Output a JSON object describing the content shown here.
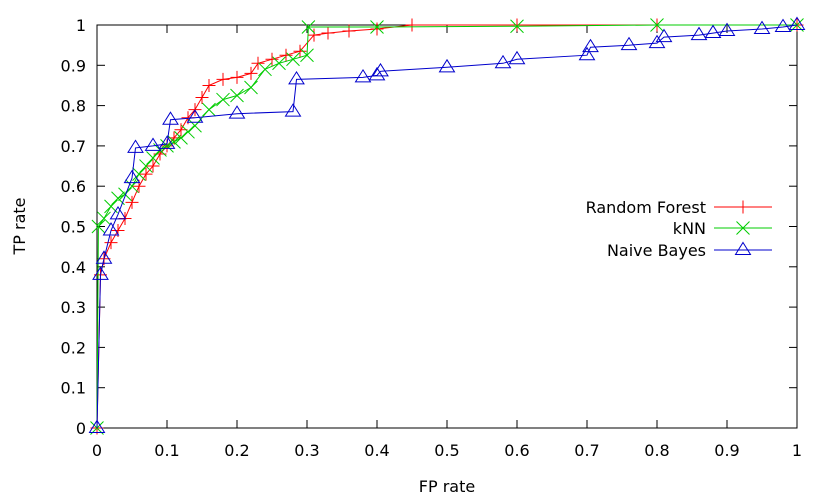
{
  "chart_data": {
    "type": "line",
    "xlabel": "FP rate",
    "ylabel": "TP rate",
    "xlim": [
      0,
      1
    ],
    "ylim": [
      0,
      1
    ],
    "x_ticks": [
      "0",
      "0.1",
      "0.2",
      "0.3",
      "0.4",
      "0.5",
      "0.6",
      "0.7",
      "0.8",
      "0.9",
      "1"
    ],
    "y_ticks": [
      "0",
      "0.1",
      "0.2",
      "0.3",
      "0.4",
      "0.5",
      "0.6",
      "0.7",
      "0.8",
      "0.9",
      "1"
    ],
    "grid": false,
    "legend_position": "right",
    "series": [
      {
        "name": "Random Forest",
        "color": "#ff0000",
        "marker": "plus",
        "points": [
          [
            0,
            0
          ],
          [
            0.005,
            0.38
          ],
          [
            0.01,
            0.42
          ],
          [
            0.02,
            0.46
          ],
          [
            0.03,
            0.49
          ],
          [
            0.04,
            0.52
          ],
          [
            0.05,
            0.56
          ],
          [
            0.06,
            0.6
          ],
          [
            0.07,
            0.63
          ],
          [
            0.08,
            0.65
          ],
          [
            0.09,
            0.68
          ],
          [
            0.1,
            0.7
          ],
          [
            0.11,
            0.72
          ],
          [
            0.12,
            0.74
          ],
          [
            0.13,
            0.77
          ],
          [
            0.14,
            0.79
          ],
          [
            0.15,
            0.82
          ],
          [
            0.16,
            0.85
          ],
          [
            0.18,
            0.865
          ],
          [
            0.2,
            0.87
          ],
          [
            0.22,
            0.88
          ],
          [
            0.23,
            0.905
          ],
          [
            0.25,
            0.915
          ],
          [
            0.27,
            0.925
          ],
          [
            0.29,
            0.935
          ],
          [
            0.31,
            0.975
          ],
          [
            0.33,
            0.98
          ],
          [
            0.36,
            0.985
          ],
          [
            0.4,
            0.99
          ],
          [
            0.45,
            1
          ],
          [
            0.6,
            1
          ],
          [
            0.8,
            1
          ],
          [
            1,
            1
          ]
        ]
      },
      {
        "name": "kNN",
        "color": "#00cc00",
        "marker": "cross",
        "points": [
          [
            0,
            0
          ],
          [
            0.002,
            0.5
          ],
          [
            0.01,
            0.52
          ],
          [
            0.02,
            0.55
          ],
          [
            0.03,
            0.57
          ],
          [
            0.04,
            0.58
          ],
          [
            0.05,
            0.6
          ],
          [
            0.06,
            0.63
          ],
          [
            0.07,
            0.65
          ],
          [
            0.08,
            0.67
          ],
          [
            0.09,
            0.69
          ],
          [
            0.1,
            0.7
          ],
          [
            0.11,
            0.71
          ],
          [
            0.12,
            0.72
          ],
          [
            0.13,
            0.735
          ],
          [
            0.14,
            0.75
          ],
          [
            0.16,
            0.79
          ],
          [
            0.18,
            0.815
          ],
          [
            0.2,
            0.825
          ],
          [
            0.22,
            0.845
          ],
          [
            0.24,
            0.89
          ],
          [
            0.26,
            0.905
          ],
          [
            0.28,
            0.915
          ],
          [
            0.3,
            0.925
          ],
          [
            0.302,
            0.995
          ],
          [
            0.4,
            0.995
          ],
          [
            0.6,
            0.997
          ],
          [
            0.8,
            1
          ],
          [
            1,
            1
          ]
        ]
      },
      {
        "name": "Naive Bayes",
        "color": "#0000cc",
        "marker": "triangle",
        "points": [
          [
            0,
            0
          ],
          [
            0.005,
            0.38
          ],
          [
            0.01,
            0.42
          ],
          [
            0.02,
            0.49
          ],
          [
            0.03,
            0.53
          ],
          [
            0.05,
            0.62
          ],
          [
            0.055,
            0.695
          ],
          [
            0.08,
            0.7
          ],
          [
            0.1,
            0.705
          ],
          [
            0.105,
            0.765
          ],
          [
            0.14,
            0.77
          ],
          [
            0.2,
            0.78
          ],
          [
            0.28,
            0.785
          ],
          [
            0.285,
            0.865
          ],
          [
            0.38,
            0.87
          ],
          [
            0.4,
            0.875
          ],
          [
            0.405,
            0.885
          ],
          [
            0.5,
            0.895
          ],
          [
            0.58,
            0.905
          ],
          [
            0.6,
            0.915
          ],
          [
            0.7,
            0.925
          ],
          [
            0.705,
            0.945
          ],
          [
            0.76,
            0.95
          ],
          [
            0.8,
            0.955
          ],
          [
            0.81,
            0.97
          ],
          [
            0.86,
            0.975
          ],
          [
            0.88,
            0.98
          ],
          [
            0.9,
            0.985
          ],
          [
            0.95,
            0.99
          ],
          [
            0.98,
            0.995
          ],
          [
            1,
            1
          ]
        ]
      }
    ]
  }
}
